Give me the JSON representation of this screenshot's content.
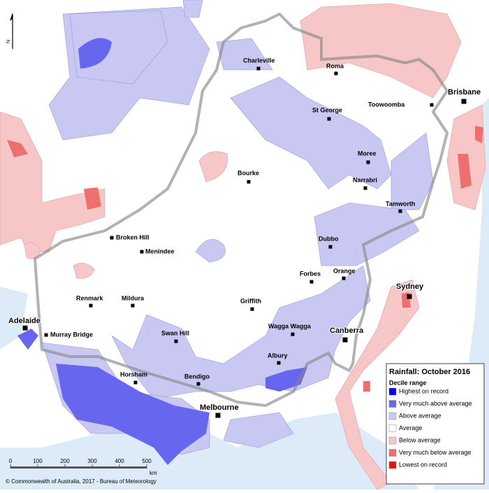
{
  "map": {
    "north": "N",
    "places": [
      "Charleville",
      "Roma",
      "Brisbane",
      "Toowoomba",
      "St George",
      "Moree",
      "Bourke",
      "Narrabri",
      "Tamworth",
      "Broken Hill",
      "Menindee",
      "Dubbo",
      "Forbes",
      "Orange",
      "Sydney",
      "Renmark",
      "Mildura",
      "Griffith",
      "Adelaide",
      "Wagga Wagga",
      "Canberra",
      "Murray Bridge",
      "Swan Hill",
      "Albury",
      "Horsham",
      "Bendigo",
      "Melbourne"
    ],
    "legend": {
      "title": "Rainfall: October 2016",
      "subtitle": "Decile range",
      "items": [
        {
          "label": "Highest on record",
          "color": "#0000ff"
        },
        {
          "label": "Very much above average",
          "color": "#6666ee"
        },
        {
          "label": "Above average",
          "color": "#c8c8f2"
        },
        {
          "label": "Average",
          "color": "#ffffff"
        },
        {
          "label": "Below average",
          "color": "#f7c6c6"
        },
        {
          "label": "Very much below average",
          "color": "#ee6f6f"
        },
        {
          "label": "Lowest on record",
          "color": "#ee1111"
        }
      ]
    },
    "scale": {
      "ticks": [
        0,
        100,
        200,
        300,
        400,
        500
      ],
      "unit": "km"
    },
    "copyright": "© Commonwealth of Australia, 2017 - Bureau of Meteorology"
  }
}
